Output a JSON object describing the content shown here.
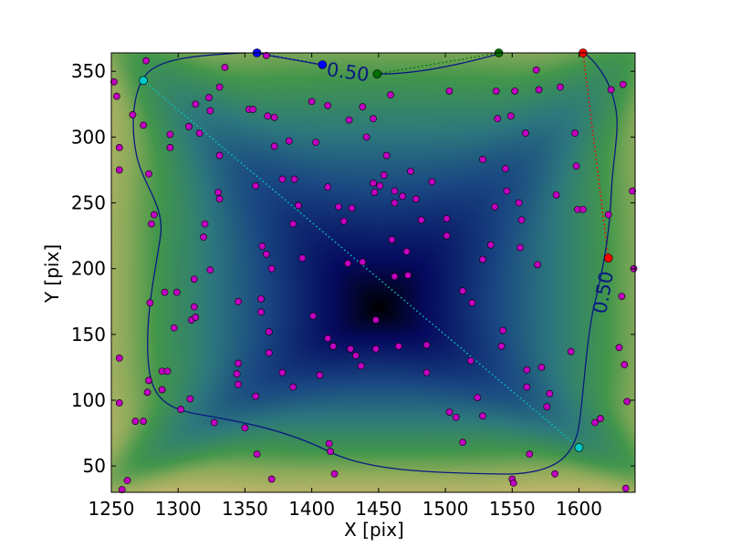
{
  "chart_data": {
    "type": "scatter",
    "title": "",
    "xlabel": "X [pix]",
    "ylabel": "Y [pix]",
    "xlim": [
      1250,
      1642
    ],
    "ylim": [
      30,
      364
    ],
    "xticks": [
      1250,
      1300,
      1350,
      1400,
      1450,
      1500,
      1550,
      1600
    ],
    "yticks": [
      50,
      100,
      150,
      200,
      250,
      300,
      350
    ],
    "background": "gist_earth density map, darkest near (1450,160)",
    "contour": {
      "level_label": "0.50",
      "color": "#0a1a80"
    },
    "point_color": "#c000c0",
    "points": [
      [
        1252,
        342
      ],
      [
        1254,
        331
      ],
      [
        1256,
        292
      ],
      [
        1256,
        275
      ],
      [
        1266,
        317
      ],
      [
        1274,
        309
      ],
      [
        1276,
        358
      ],
      [
        1278,
        272
      ],
      [
        1280,
        234
      ],
      [
        1282,
        241
      ],
      [
        1279,
        174
      ],
      [
        1278,
        115
      ],
      [
        1277,
        106
      ],
      [
        1268,
        84
      ],
      [
        1274,
        84
      ],
      [
        1256,
        98
      ],
      [
        1256,
        132
      ],
      [
        1262,
        39
      ],
      [
        1258,
        32
      ],
      [
        1288,
        108
      ],
      [
        1288,
        122
      ],
      [
        1292,
        122
      ],
      [
        1290,
        182
      ],
      [
        1299,
        182
      ],
      [
        1294,
        302
      ],
      [
        1294,
        292
      ],
      [
        1297,
        155
      ],
      [
        1302,
        93
      ],
      [
        1309,
        101
      ],
      [
        1308,
        308
      ],
      [
        1313,
        325
      ],
      [
        1316,
        303
      ],
      [
        1312,
        192
      ],
      [
        1312,
        171
      ],
      [
        1310,
        161
      ],
      [
        1313,
        163
      ],
      [
        1319,
        224
      ],
      [
        1320,
        234
      ],
      [
        1324,
        199
      ],
      [
        1324,
        320
      ],
      [
        1323,
        330
      ],
      [
        1327,
        83
      ],
      [
        1331,
        338
      ],
      [
        1331,
        286
      ],
      [
        1330,
        258
      ],
      [
        1331,
        253
      ],
      [
        1335,
        353
      ],
      [
        1345,
        175
      ],
      [
        1345,
        128
      ],
      [
        1344,
        120
      ],
      [
        1345,
        112
      ],
      [
        1350,
        79
      ],
      [
        1353,
        321
      ],
      [
        1356,
        321
      ],
      [
        1358,
        263
      ],
      [
        1359,
        59
      ],
      [
        1358,
        103
      ],
      [
        1362,
        177
      ],
      [
        1362,
        167
      ],
      [
        1363,
        217
      ],
      [
        1366,
        362
      ],
      [
        1367,
        316
      ],
      [
        1372,
        315
      ],
      [
        1366,
        211
      ],
      [
        1368,
        152
      ],
      [
        1368,
        136
      ],
      [
        1370,
        200
      ],
      [
        1370,
        40
      ],
      [
        1372,
        293
      ],
      [
        1378,
        268
      ],
      [
        1378,
        121
      ],
      [
        1383,
        297
      ],
      [
        1386,
        110
      ],
      [
        1386,
        234
      ],
      [
        1387,
        268
      ],
      [
        1390,
        248
      ],
      [
        1393,
        208
      ],
      [
        1401,
        164
      ],
      [
        1400,
        327
      ],
      [
        1403,
        296
      ],
      [
        1406,
        119
      ],
      [
        1412,
        324
      ],
      [
        1412,
        262
      ],
      [
        1412,
        147
      ],
      [
        1413,
        67
      ],
      [
        1414,
        61
      ],
      [
        1416,
        141
      ],
      [
        1417,
        44
      ],
      [
        1420,
        247
      ],
      [
        1424,
        236
      ],
      [
        1427,
        204
      ],
      [
        1428,
        313
      ],
      [
        1430,
        246
      ],
      [
        1429,
        139
      ],
      [
        1433,
        134
      ],
      [
        1437,
        126
      ],
      [
        1438,
        205
      ],
      [
        1438,
        323
      ],
      [
        1441,
        300
      ],
      [
        1446,
        314
      ],
      [
        1446,
        265
      ],
      [
        1447,
        258
      ],
      [
        1448,
        161
      ],
      [
        1448,
        139
      ],
      [
        1451,
        263
      ],
      [
        1454,
        271
      ],
      [
        1456,
        286
      ],
      [
        1459,
        332
      ],
      [
        1462,
        259
      ],
      [
        1462,
        250
      ],
      [
        1460,
        222
      ],
      [
        1462,
        194
      ],
      [
        1465,
        141
      ],
      [
        1468,
        255
      ],
      [
        1471,
        213
      ],
      [
        1472,
        195
      ],
      [
        1474,
        274
      ],
      [
        1478,
        253
      ],
      [
        1482,
        237
      ],
      [
        1486,
        142
      ],
      [
        1486,
        121
      ],
      [
        1490,
        266
      ],
      [
        1501,
        238
      ],
      [
        1501,
        225
      ],
      [
        1503,
        335
      ],
      [
        1503,
        91
      ],
      [
        1508,
        87
      ],
      [
        1513,
        183
      ],
      [
        1513,
        68
      ],
      [
        1520,
        174
      ],
      [
        1519,
        130
      ],
      [
        1524,
        102
      ],
      [
        1528,
        283
      ],
      [
        1528,
        88
      ],
      [
        1528,
        207
      ],
      [
        1534,
        218
      ],
      [
        1537,
        247
      ],
      [
        1538,
        335
      ],
      [
        1539,
        314
      ],
      [
        1542,
        141
      ],
      [
        1543,
        153
      ],
      [
        1545,
        276
      ],
      [
        1546,
        259
      ],
      [
        1549,
        316
      ],
      [
        1550,
        40
      ],
      [
        1551,
        37
      ],
      [
        1552,
        335
      ],
      [
        1555,
        250
      ],
      [
        1557,
        237
      ],
      [
        1556,
        216
      ],
      [
        1560,
        303
      ],
      [
        1561,
        123
      ],
      [
        1561,
        110
      ],
      [
        1563,
        59
      ],
      [
        1568,
        351
      ],
      [
        1570,
        336
      ],
      [
        1569,
        203
      ],
      [
        1572,
        125
      ],
      [
        1576,
        95
      ],
      [
        1578,
        105
      ],
      [
        1582,
        44
      ],
      [
        1583,
        256
      ],
      [
        1586,
        338
      ],
      [
        1594,
        137
      ],
      [
        1597,
        303
      ],
      [
        1598,
        278
      ],
      [
        1599,
        245
      ],
      [
        1603,
        245
      ],
      [
        1612,
        83
      ],
      [
        1616,
        86
      ],
      [
        1622,
        241
      ],
      [
        1624,
        336
      ],
      [
        1630,
        140
      ],
      [
        1632,
        179
      ],
      [
        1633,
        340
      ],
      [
        1634,
        127
      ],
      [
        1636,
        99
      ],
      [
        1635,
        33
      ],
      [
        1640,
        259
      ],
      [
        1641,
        200
      ]
    ],
    "marked_pairs": [
      {
        "color": "#00c8c8",
        "points": [
          [
            1274,
            343
          ],
          [
            1600,
            64
          ]
        ]
      },
      {
        "color": "#0000ff",
        "points": [
          [
            1359,
            364
          ],
          [
            1408,
            355
          ]
        ]
      },
      {
        "color": "#007000",
        "points": [
          [
            1449,
            348
          ],
          [
            1540,
            364
          ]
        ]
      },
      {
        "color": "#ff0000",
        "points": [
          [
            1603,
            364
          ],
          [
            1622,
            208
          ]
        ]
      }
    ]
  }
}
